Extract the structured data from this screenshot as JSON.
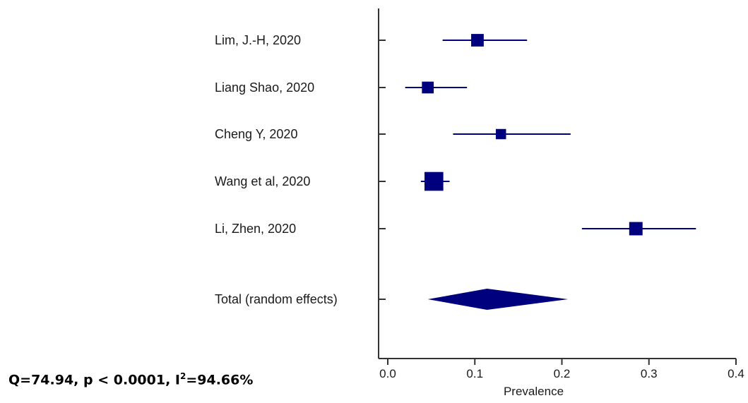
{
  "chart_data": {
    "type": "forest",
    "xlabel": "Prevalence",
    "xlim": [
      0,
      0.4
    ],
    "xticks": [
      "0.0",
      "0.1",
      "0.2",
      "0.3",
      "0.4"
    ],
    "xtick_values": [
      0,
      0.1,
      0.2,
      0.3,
      0.4
    ],
    "studies": [
      {
        "label": "Lim, J.-H, 2020",
        "estimate": 0.103,
        "lower": 0.063,
        "upper": 0.16,
        "weight": 0.8
      },
      {
        "label": "Liang Shao, 2020",
        "estimate": 0.046,
        "lower": 0.02,
        "upper": 0.091,
        "weight": 0.7
      },
      {
        "label": "Cheng Y, 2020",
        "estimate": 0.13,
        "lower": 0.075,
        "upper": 0.21,
        "weight": 0.5
      },
      {
        "label": "Wang et al, 2020",
        "estimate": 0.053,
        "lower": 0.038,
        "upper": 0.071,
        "weight": 1.6
      },
      {
        "label": "Li, Zhen, 2020",
        "estimate": 0.285,
        "lower": 0.223,
        "upper": 0.354,
        "weight": 0.9
      }
    ],
    "pooled": {
      "label": "Total (random effects)",
      "estimate": 0.114,
      "lower": 0.046,
      "upper": 0.207
    },
    "colors": {
      "marker": "#00007f",
      "axis": "#333333"
    }
  },
  "stats": {
    "prefix": "Q=74.94, p < 0.0001, I",
    "superscript": "2",
    "suffix": "=94.66%"
  }
}
